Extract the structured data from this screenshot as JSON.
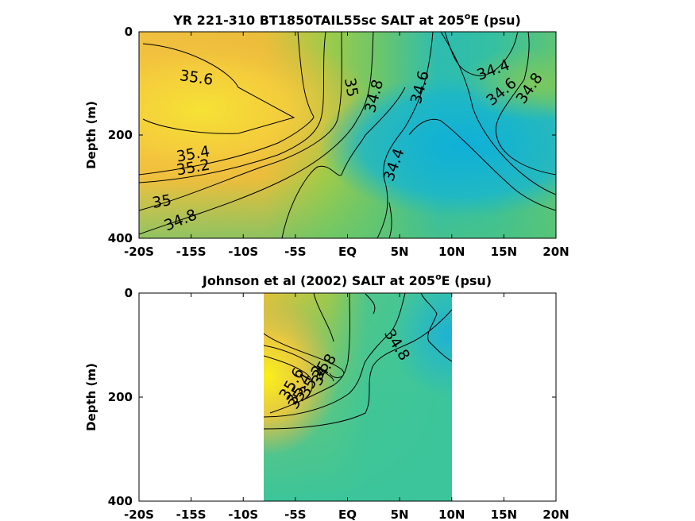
{
  "chart_data": [
    {
      "type": "heatmap",
      "title_pre": "YR 221-310 BT1850TAIL55sc SALT at 205",
      "title_sup": "o",
      "title_post": "E (psu)",
      "xlabel": "",
      "ylabel": "Depth (m)",
      "xlim": [
        -20,
        20
      ],
      "ylim": [
        400,
        0
      ],
      "xticks": [
        {
          "v": -20,
          "label": "-20S"
        },
        {
          "v": -15,
          "label": "-15S"
        },
        {
          "v": -10,
          "label": "-10S"
        },
        {
          "v": -5,
          "label": "-5S"
        },
        {
          "v": 0,
          "label": "EQ"
        },
        {
          "v": 5,
          "label": "5N"
        },
        {
          "v": 10,
          "label": "10N"
        },
        {
          "v": 15,
          "label": "15N"
        },
        {
          "v": 20,
          "label": "20N"
        }
      ],
      "yticks": [
        {
          "v": 0,
          "label": "0"
        },
        {
          "v": 200,
          "label": "200"
        },
        {
          "v": 400,
          "label": "400"
        }
      ],
      "data_extent": [
        -20,
        20
      ],
      "colors": {
        "high": "#f6e235",
        "mid": "#7fcf6a",
        "low": "#1ab4d4"
      },
      "contour_labels": [
        {
          "text": "35.6",
          "lat": -14.5,
          "depth": 90,
          "rot": 8
        },
        {
          "text": "35.4",
          "lat": -14.8,
          "depth": 238,
          "rot": -10
        },
        {
          "text": "35.2",
          "lat": -14.8,
          "depth": 264,
          "rot": -10
        },
        {
          "text": "35",
          "lat": -17.8,
          "depth": 330,
          "rot": -10
        },
        {
          "text": "34.8",
          "lat": -16.0,
          "depth": 366,
          "rot": -22
        },
        {
          "text": "35",
          "lat": 0.3,
          "depth": 108,
          "rot": 80
        },
        {
          "text": "34.8",
          "lat": 2.6,
          "depth": 125,
          "rot": -75
        },
        {
          "text": "34.6",
          "lat": 7.0,
          "depth": 108,
          "rot": -75
        },
        {
          "text": "34.4",
          "lat": 14.0,
          "depth": 75,
          "rot": -20
        },
        {
          "text": "34.6",
          "lat": 14.8,
          "depth": 117,
          "rot": -40
        },
        {
          "text": "34.8",
          "lat": 17.5,
          "depth": 110,
          "rot": -55
        },
        {
          "text": "34.4",
          "lat": 4.5,
          "depth": 258,
          "rot": -70
        }
      ]
    },
    {
      "type": "heatmap",
      "title_pre": "Johnson et al (2002) SALT at 205",
      "title_sup": "o",
      "title_post": "E (psu)",
      "xlabel": "",
      "ylabel": "Depth (m)",
      "xlim": [
        -20,
        20
      ],
      "ylim": [
        400,
        0
      ],
      "xticks": [
        {
          "v": -20,
          "label": "-20S"
        },
        {
          "v": -15,
          "label": "-15S"
        },
        {
          "v": -10,
          "label": "-10S"
        },
        {
          "v": -5,
          "label": "-5S"
        },
        {
          "v": 0,
          "label": "EQ"
        },
        {
          "v": 5,
          "label": "5N"
        },
        {
          "v": 10,
          "label": "10N"
        },
        {
          "v": 15,
          "label": "15N"
        },
        {
          "v": 20,
          "label": "20N"
        }
      ],
      "yticks": [
        {
          "v": 0,
          "label": "0"
        },
        {
          "v": 200,
          "label": "200"
        },
        {
          "v": 400,
          "label": "400"
        }
      ],
      "data_extent": [
        -8,
        10
      ],
      "colors": {
        "high": "#f8ec1c",
        "mid": "#3fc89a",
        "low": "#1ab4d4"
      },
      "contour_labels": [
        {
          "text": "34.8",
          "lat": 4.7,
          "depth": 100,
          "rot": 58
        },
        {
          "text": "35",
          "lat": -4.8,
          "depth": 205,
          "rot": -60
        },
        {
          "text": "35.2",
          "lat": -3.4,
          "depth": 170,
          "rot": -60
        },
        {
          "text": "35.4",
          "lat": -4.6,
          "depth": 185,
          "rot": -60
        },
        {
          "text": "35.6",
          "lat": -5.3,
          "depth": 175,
          "rot": -60
        },
        {
          "text": "35",
          "lat": -2.5,
          "depth": 150,
          "rot": -60
        },
        {
          "text": "34.8",
          "lat": -2.2,
          "depth": 148,
          "rot": -60
        }
      ]
    }
  ]
}
